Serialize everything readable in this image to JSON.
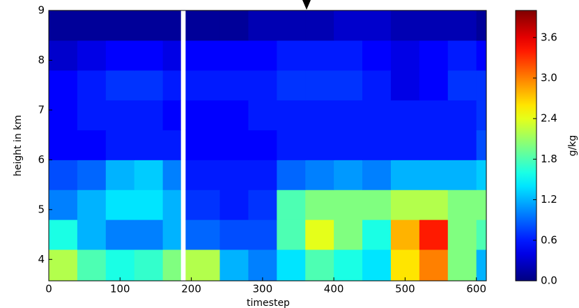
{
  "chart_data": {
    "type": "heatmap",
    "x_label": "timestep",
    "y_label": "height in km",
    "colorbar_label": "g/kg",
    "x_bins": [
      0,
      40,
      80,
      120,
      160,
      185,
      192,
      240,
      280,
      320,
      360,
      400,
      440,
      480,
      520,
      560,
      600,
      614
    ],
    "y_bins": [
      3.57,
      4.2,
      4.8,
      5.4,
      6.0,
      6.6,
      7.2,
      7.8,
      8.4,
      9.0
    ],
    "z": [
      [
        2.2,
        1.8,
        1.6,
        1.7,
        2.0,
        null,
        2.2,
        1.2,
        1.0,
        1.4,
        1.8,
        1.6,
        1.4,
        2.6,
        3.0,
        2.0,
        1.2
      ],
      [
        1.6,
        1.2,
        1.0,
        1.0,
        1.2,
        null,
        0.9,
        0.8,
        0.8,
        1.8,
        2.4,
        2.0,
        1.6,
        2.8,
        3.4,
        2.0,
        1.8
      ],
      [
        1.0,
        1.2,
        1.4,
        1.4,
        1.2,
        null,
        0.7,
        0.6,
        0.7,
        1.8,
        2.0,
        2.0,
        2.0,
        2.2,
        2.2,
        2.0,
        2.0
      ],
      [
        0.8,
        0.9,
        1.2,
        1.3,
        1.0,
        null,
        0.6,
        0.6,
        0.6,
        0.9,
        1.0,
        1.1,
        1.0,
        1.2,
        1.2,
        1.2,
        1.3
      ],
      [
        0.5,
        0.5,
        0.6,
        0.6,
        0.6,
        null,
        0.5,
        0.5,
        0.5,
        0.6,
        0.6,
        0.6,
        0.6,
        0.6,
        0.6,
        0.6,
        0.8
      ],
      [
        0.5,
        0.6,
        0.6,
        0.6,
        0.5,
        null,
        0.5,
        0.5,
        0.6,
        0.6,
        0.6,
        0.6,
        0.6,
        0.6,
        0.6,
        0.6,
        0.7
      ],
      [
        0.5,
        0.6,
        0.7,
        0.7,
        0.6,
        null,
        0.6,
        0.6,
        0.6,
        0.7,
        0.7,
        0.7,
        0.6,
        0.4,
        0.5,
        0.7,
        0.7
      ],
      [
        0.3,
        0.4,
        0.5,
        0.5,
        0.4,
        null,
        0.5,
        0.5,
        0.5,
        0.6,
        0.6,
        0.6,
        0.5,
        0.4,
        0.5,
        0.6,
        0.5
      ],
      [
        0.1,
        0.1,
        0.1,
        0.1,
        0.1,
        null,
        0.1,
        0.1,
        0.2,
        0.2,
        0.2,
        0.3,
        0.3,
        0.2,
        0.2,
        0.2,
        0.1
      ]
    ],
    "xlim": [
      0,
      614
    ],
    "ylim": [
      3.57,
      9
    ],
    "xticks": [
      0,
      100,
      200,
      300,
      400,
      500,
      600
    ],
    "yticks": [
      4,
      5,
      6,
      7,
      8,
      9
    ],
    "clim": [
      0,
      4.0
    ],
    "cticks": [
      {
        "value": 0,
        "label": "0.0"
      },
      0.6,
      1.2,
      1.8,
      2.4,
      {
        "value": 3,
        "label": "3.0"
      },
      3.6
    ],
    "colormap": "jet"
  }
}
